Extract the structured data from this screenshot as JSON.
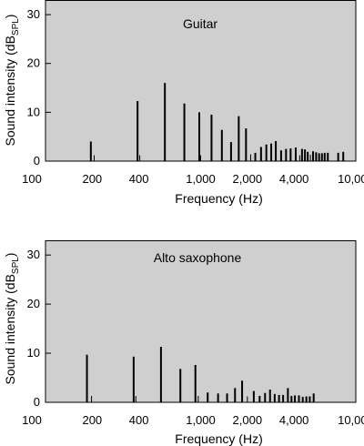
{
  "chart_data": [
    {
      "type": "bar",
      "title": "Guitar",
      "xlabel": "Frequency (Hz)",
      "ylabel": "Sound intensity (dB",
      "ylabel_sub": "SPL",
      "ylabel_end": ")",
      "x_scale": "log",
      "xlim": [
        100,
        10000
      ],
      "ylim": [
        0,
        33
      ],
      "x_ticks": [
        100,
        200,
        400,
        1000,
        2000,
        4000,
        10000
      ],
      "x_tick_labels": [
        "100",
        "200",
        "400",
        "1,000",
        "2,000",
        "4,000",
        "10,000"
      ],
      "y_ticks": [
        0,
        10,
        20,
        30
      ],
      "y_tick_labels": [
        "0",
        "10",
        "20",
        "30"
      ],
      "bars": [
        {
          "x": 196,
          "y": 4,
          "w": 2
        },
        {
          "x": 206,
          "y": 1.2,
          "w": 1
        },
        {
          "x": 392,
          "y": 12.3,
          "w": 2
        },
        {
          "x": 405,
          "y": 1.2,
          "w": 1
        },
        {
          "x": 588,
          "y": 16,
          "w": 2
        },
        {
          "x": 785,
          "y": 11.8,
          "w": 2
        },
        {
          "x": 980,
          "y": 10,
          "w": 2
        },
        {
          "x": 1000,
          "y": 1.2,
          "w": 1
        },
        {
          "x": 1175,
          "y": 9.5,
          "w": 2
        },
        {
          "x": 1370,
          "y": 6.4,
          "w": 2
        },
        {
          "x": 1570,
          "y": 3.9,
          "w": 2
        },
        {
          "x": 1760,
          "y": 9.2,
          "w": 2
        },
        {
          "x": 1960,
          "y": 6.7,
          "w": 2
        },
        {
          "x": 2100,
          "y": 1.4,
          "w": 1
        },
        {
          "x": 2250,
          "y": 1.7,
          "w": 2
        },
        {
          "x": 2450,
          "y": 2.9,
          "w": 2
        },
        {
          "x": 2650,
          "y": 3.4,
          "w": 2
        },
        {
          "x": 2850,
          "y": 3.6,
          "w": 2
        },
        {
          "x": 3050,
          "y": 4.1,
          "w": 2
        },
        {
          "x": 3300,
          "y": 2.2,
          "w": 2
        },
        {
          "x": 3550,
          "y": 2.5,
          "w": 2
        },
        {
          "x": 3800,
          "y": 2.6,
          "w": 2
        },
        {
          "x": 4100,
          "y": 2.8,
          "w": 2
        },
        {
          "x": 4350,
          "y": 1.2,
          "w": 1
        },
        {
          "x": 4500,
          "y": 2.5,
          "w": 2
        },
        {
          "x": 4700,
          "y": 2.4,
          "w": 2
        },
        {
          "x": 4900,
          "y": 1.9,
          "w": 2
        },
        {
          "x": 5100,
          "y": 1.3,
          "w": 1
        },
        {
          "x": 5300,
          "y": 2,
          "w": 2
        },
        {
          "x": 5550,
          "y": 1.8,
          "w": 2
        },
        {
          "x": 5800,
          "y": 1.6,
          "w": 2
        },
        {
          "x": 6050,
          "y": 1.6,
          "w": 2
        },
        {
          "x": 6300,
          "y": 1.7,
          "w": 2
        },
        {
          "x": 6600,
          "y": 1.7,
          "w": 2
        },
        {
          "x": 7700,
          "y": 1.7,
          "w": 2
        },
        {
          "x": 8300,
          "y": 1.9,
          "w": 2
        }
      ]
    },
    {
      "type": "bar",
      "title": "Alto saxophone",
      "xlabel": "Frequency (Hz)",
      "ylabel": "Sound intensity (dB",
      "ylabel_sub": "SPL",
      "ylabel_end": ")",
      "x_scale": "log",
      "xlim": [
        100,
        10000
      ],
      "ylim": [
        0,
        33
      ],
      "x_ticks": [
        100,
        200,
        400,
        1000,
        2000,
        4000,
        10000
      ],
      "x_tick_labels": [
        "100",
        "200",
        "400",
        "1,000",
        "2,000",
        "4,000",
        "10,000"
      ],
      "y_ticks": [
        0,
        10,
        20,
        30
      ],
      "y_tick_labels": [
        "0",
        "10",
        "20",
        "30"
      ],
      "bars": [
        {
          "x": 185,
          "y": 9.7,
          "w": 2
        },
        {
          "x": 198,
          "y": 1.3,
          "w": 1
        },
        {
          "x": 370,
          "y": 9.3,
          "w": 2
        },
        {
          "x": 382,
          "y": 1.3,
          "w": 1
        },
        {
          "x": 555,
          "y": 11.3,
          "w": 2
        },
        {
          "x": 740,
          "y": 6.8,
          "w": 2
        },
        {
          "x": 925,
          "y": 7.6,
          "w": 2
        },
        {
          "x": 965,
          "y": 1.3,
          "w": 1
        },
        {
          "x": 1110,
          "y": 2,
          "w": 2
        },
        {
          "x": 1295,
          "y": 1.8,
          "w": 2
        },
        {
          "x": 1480,
          "y": 1.8,
          "w": 2
        },
        {
          "x": 1665,
          "y": 2.9,
          "w": 2
        },
        {
          "x": 1850,
          "y": 4.4,
          "w": 2
        },
        {
          "x": 2000,
          "y": 1.2,
          "w": 1
        },
        {
          "x": 2200,
          "y": 2.3,
          "w": 2
        },
        {
          "x": 2400,
          "y": 1.3,
          "w": 2
        },
        {
          "x": 2600,
          "y": 1.9,
          "w": 2
        },
        {
          "x": 2800,
          "y": 2.6,
          "w": 2
        },
        {
          "x": 3000,
          "y": 1.7,
          "w": 2
        },
        {
          "x": 3200,
          "y": 1.5,
          "w": 2
        },
        {
          "x": 3400,
          "y": 1.5,
          "w": 2
        },
        {
          "x": 3650,
          "y": 2.9,
          "w": 2
        },
        {
          "x": 3850,
          "y": 1.3,
          "w": 2
        },
        {
          "x": 4050,
          "y": 1.4,
          "w": 2
        },
        {
          "x": 4300,
          "y": 1.4,
          "w": 2
        },
        {
          "x": 4550,
          "y": 1.1,
          "w": 2
        },
        {
          "x": 4800,
          "y": 1.2,
          "w": 2
        },
        {
          "x": 5050,
          "y": 1.2,
          "w": 2
        },
        {
          "x": 5350,
          "y": 1.8,
          "w": 2
        }
      ]
    }
  ]
}
